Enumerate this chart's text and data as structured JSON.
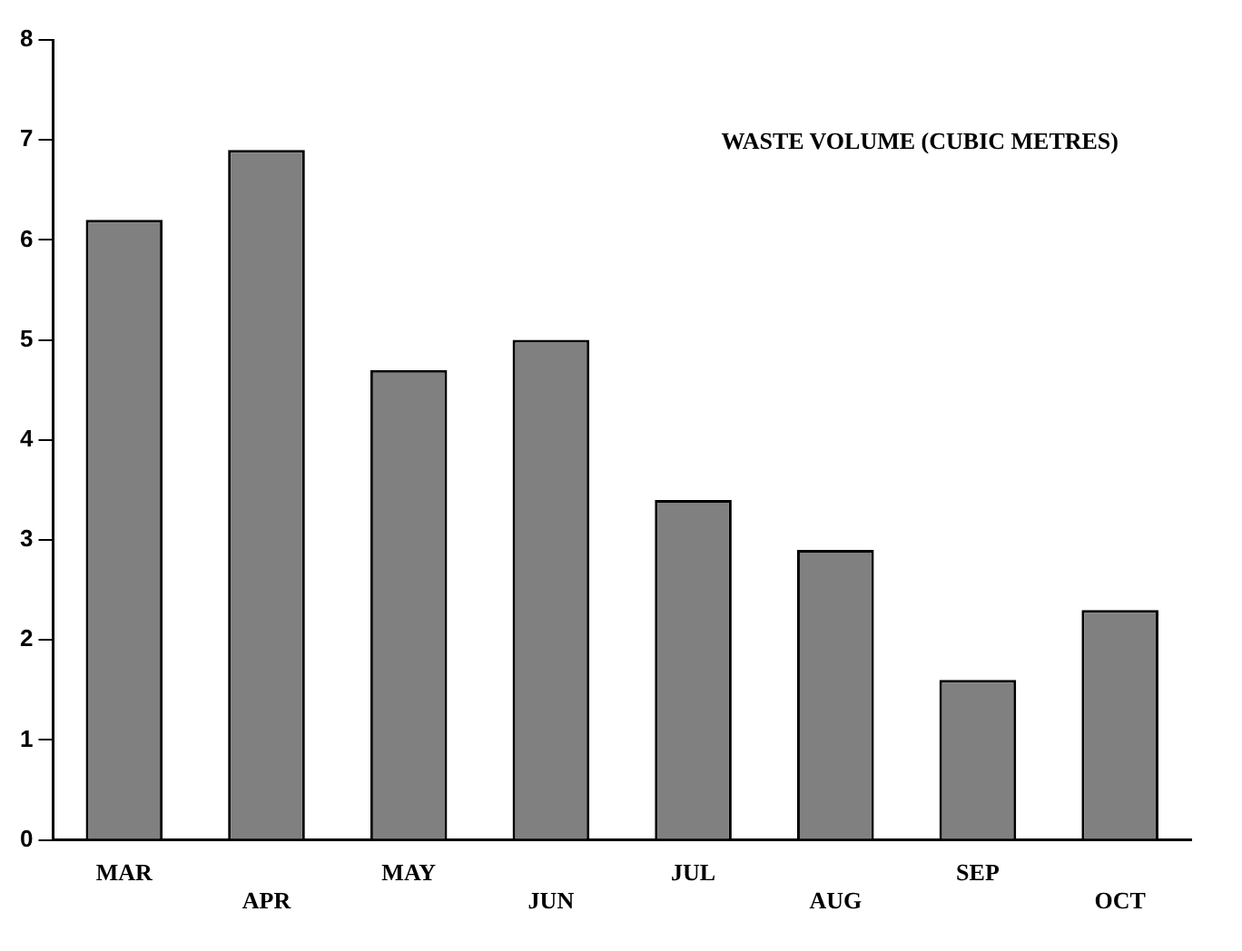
{
  "chart_data": {
    "type": "bar",
    "title": "WASTE VOLUME (CUBIC METRES)",
    "categories": [
      "MAR",
      "APR",
      "MAY",
      "JUN",
      "JUL",
      "AUG",
      "SEP",
      "OCT"
    ],
    "values": [
      6.2,
      6.9,
      4.7,
      5.0,
      3.4,
      2.9,
      1.6,
      2.3
    ],
    "color": "#808080",
    "ylim": [
      0,
      8
    ],
    "yticks": [
      0,
      1,
      2,
      3,
      4,
      5,
      6,
      7,
      8
    ],
    "grid": false,
    "legend": false
  }
}
